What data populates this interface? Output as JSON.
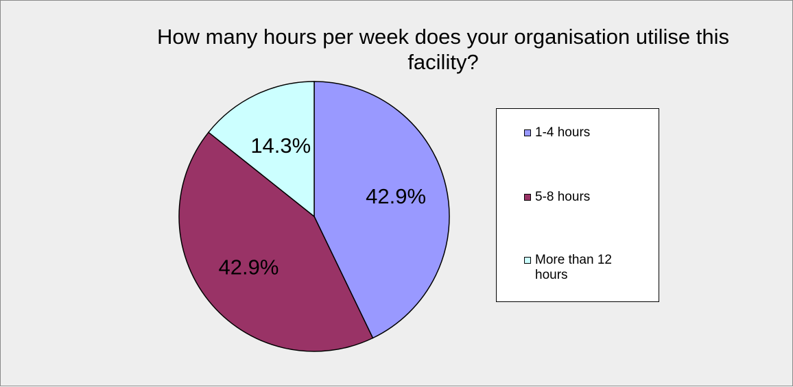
{
  "chart_data": {
    "type": "pie",
    "title": "How many hours per week does your organisation utilise this facility?",
    "categories": [
      "1-4 hours",
      "5-8 hours",
      "More than 12 hours"
    ],
    "values": [
      42.9,
      42.9,
      14.3
    ],
    "value_labels": [
      "42.9%",
      "42.9%",
      "14.3%"
    ],
    "colors": [
      "#9999ff",
      "#993366",
      "#ccffff"
    ],
    "legend": "right"
  }
}
